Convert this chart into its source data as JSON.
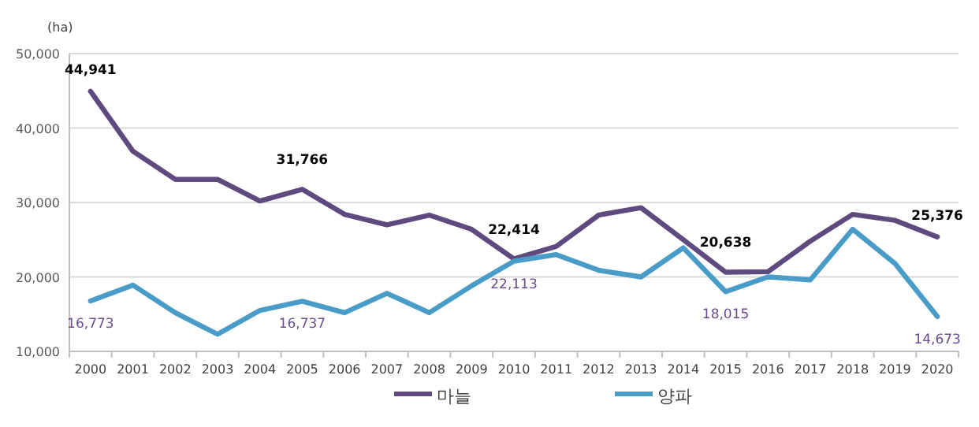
{
  "chart_data": {
    "type": "line",
    "ylabel": "(ha)",
    "categories": [
      "2000",
      "2001",
      "2002",
      "2003",
      "2004",
      "2005",
      "2006",
      "2007",
      "2008",
      "2009",
      "2010",
      "2011",
      "2012",
      "2013",
      "2014",
      "2015",
      "2016",
      "2017",
      "2018",
      "2019",
      "2020"
    ],
    "series": [
      {
        "name": "마늘",
        "color": "#5e4a7e",
        "values": [
          44941,
          36900,
          33100,
          33100,
          30200,
          31766,
          28400,
          27000,
          28300,
          26400,
          22414,
          24100,
          28300,
          29300,
          25000,
          20638,
          20700,
          24800,
          28400,
          27600,
          25376
        ],
        "value_labels": [
          "44,941",
          null,
          null,
          null,
          null,
          "31,766",
          null,
          null,
          null,
          null,
          "22,414",
          null,
          null,
          null,
          null,
          "20,638",
          null,
          null,
          null,
          null,
          "25,376"
        ]
      },
      {
        "name": "양파",
        "color": "#4a9cc8",
        "values": [
          16773,
          18900,
          15200,
          12300,
          15500,
          16737,
          15200,
          17800,
          15200,
          18800,
          22113,
          23000,
          20900,
          20000,
          23900,
          18015,
          20000,
          19600,
          26400,
          21800,
          14673
        ],
        "value_labels": [
          "16,773",
          null,
          null,
          null,
          null,
          "16,737",
          null,
          null,
          null,
          null,
          "22,113",
          null,
          null,
          null,
          null,
          "18,015",
          null,
          null,
          null,
          null,
          "14,673"
        ]
      }
    ],
    "ylim": [
      10000,
      50000
    ],
    "yticks": [
      {
        "value": 10000,
        "label": "10,000"
      },
      {
        "value": 20000,
        "label": "20,000"
      },
      {
        "value": 30000,
        "label": "30,000"
      },
      {
        "value": 40000,
        "label": "40,000"
      },
      {
        "value": 50000,
        "label": "50,000"
      }
    ],
    "grid": "y",
    "legend": "bottom",
    "marker": "none",
    "line_style": "solid"
  }
}
